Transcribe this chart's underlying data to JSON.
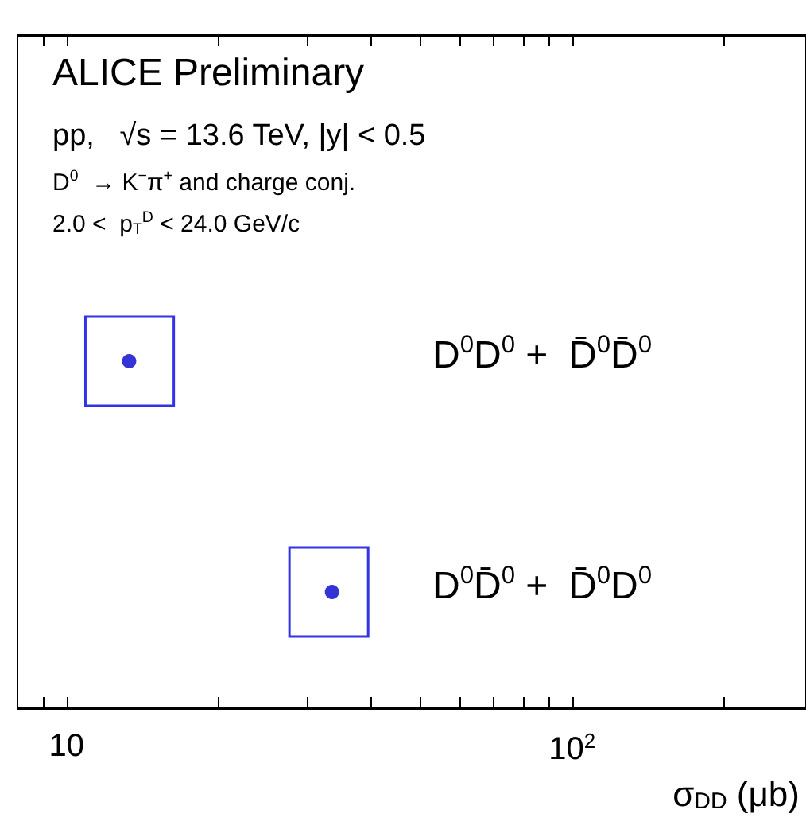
{
  "chart_data": {
    "type": "scatter",
    "orientation": "horizontal",
    "title": "ALICE Preliminary",
    "annotations": [
      "pp,   √s = 13.6 TeV, |y| < 0.5",
      "D$^{0}$  → K$^{−}$π$^{+}$ and charge conj.",
      "2.0 <  p$_{T}$$^{D}$ < 24.0 GeV/c"
    ],
    "xlabel": "σ$_{DD}$ (μb)",
    "categories": [
      "D$^{0}$D$^{0}$ +  D̄$^{0}$D̄$^{0}$",
      "D$^{0}$D̄$^{0}$ +  D̄$^{0}$D$^{0}$"
    ],
    "series": [
      {
        "type": "bar",
        "color": "#3333e6",
        "base": [
          10.9,
          27.6
        ],
        "values": [
          5.4,
          11.9
        ]
      },
      {
        "color": "#0000cc",
        "values": [
          13.3,
          33.5
        ]
      }
    ],
    "log": "x",
    "marker": "circle",
    "xlim": [
      8,
      290
    ],
    "xticks": [
      {
        "value": 9,
        "label": null
      },
      {
        "value": 10,
        "label": "10"
      },
      {
        "value": 20,
        "label": null
      },
      {
        "value": 30,
        "label": null
      },
      {
        "value": 40,
        "label": null
      },
      {
        "value": 50,
        "label": null
      },
      {
        "value": 60,
        "label": null
      },
      {
        "value": 70,
        "label": null
      },
      {
        "value": 80,
        "label": null
      },
      {
        "value": 90,
        "label": null
      },
      {
        "value": 100,
        "label": "10$^{2}$"
      },
      {
        "value": 200,
        "label": null
      }
    ]
  }
}
